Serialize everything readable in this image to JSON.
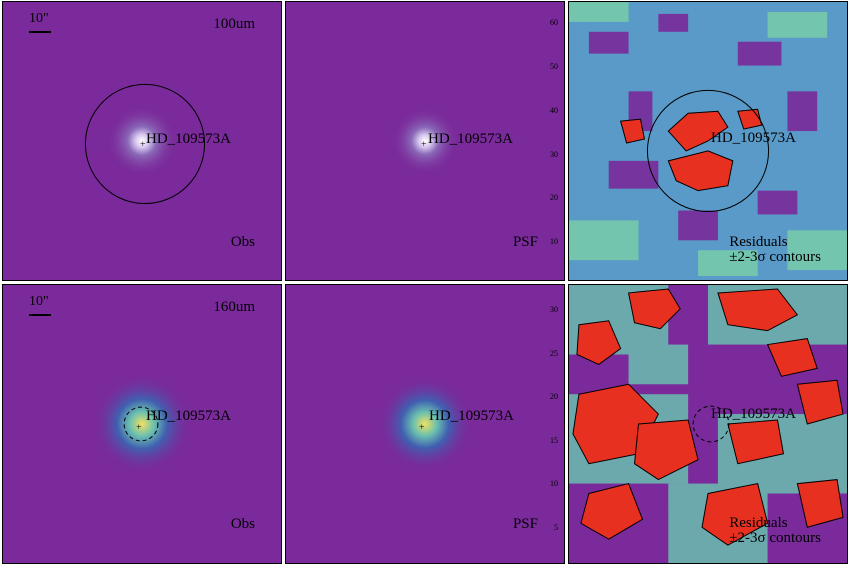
{
  "target_name": "HD_109573A",
  "scale_label": "10\"",
  "rows": [
    {
      "band": "100um",
      "axis_ticks": [
        "60",
        "50",
        "40",
        "30",
        "20",
        "10"
      ],
      "panels": [
        {
          "kind": "Obs",
          "caption": "Obs"
        },
        {
          "kind": "PSF",
          "caption": "PSF"
        },
        {
          "kind": "Residuals",
          "caption": "Residuals",
          "caption2": "±2-3σ contours"
        }
      ]
    },
    {
      "band": "160um",
      "axis_ticks": [
        "30",
        "25",
        "20",
        "15",
        "10",
        "5"
      ],
      "panels": [
        {
          "kind": "Obs",
          "caption": "Obs"
        },
        {
          "kind": "PSF",
          "caption": "PSF"
        },
        {
          "kind": "Residuals",
          "caption": "Residuals",
          "caption2": "±2-3σ contours"
        }
      ]
    }
  ],
  "colors": {
    "background": "#7a2a9a",
    "core_hot": "#f0e060",
    "residual_pos": "#e83020",
    "residual_mid": "#6ac0b0"
  }
}
